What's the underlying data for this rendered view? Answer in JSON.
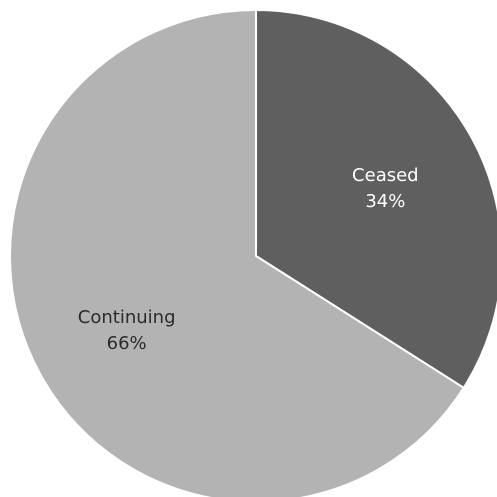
{
  "chart_data": {
    "type": "pie",
    "title": "",
    "start_angle_deg": 0,
    "direction": "clockwise",
    "slices": [
      {
        "label": "Ceased",
        "value": 34,
        "value_text": "34%",
        "color": "#5f5f5f",
        "label_color": "#ffffff"
      },
      {
        "label": "Continuing",
        "value": 66,
        "value_text": "66%",
        "color": "#b3b3b3",
        "label_color": "#2b2b2b"
      }
    ],
    "legend": "none"
  }
}
